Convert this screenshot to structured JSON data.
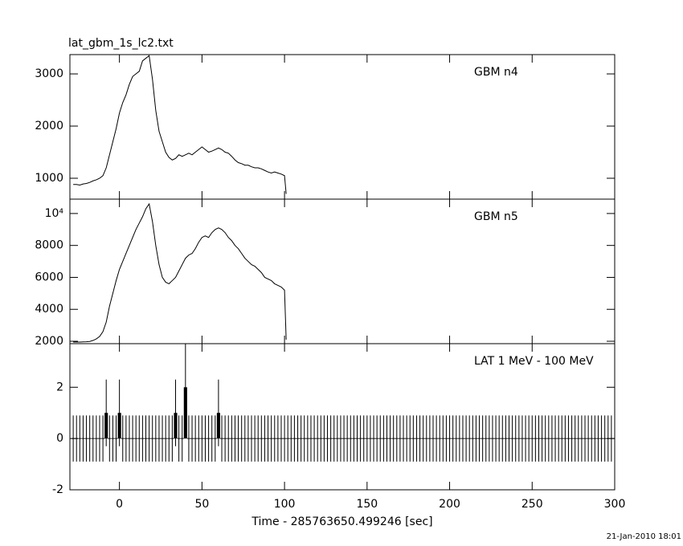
{
  "timestamp": "21-Jan-2010 18:01",
  "chart_data": [
    {
      "type": "line",
      "title": "lat_gbm_1s_lc2.txt",
      "label": "GBM n4",
      "color": "#000000",
      "xlim": [
        -30,
        300
      ],
      "ylim": [
        600,
        3370
      ],
      "yticks": [
        1000,
        2000,
        3000
      ],
      "x": [
        -28,
        -26,
        -24,
        -22,
        -20,
        -18,
        -16,
        -14,
        -12,
        -10,
        -8,
        -6,
        -4,
        -2,
        0,
        2,
        4,
        6,
        8,
        10,
        12,
        14,
        16,
        18,
        20,
        22,
        24,
        26,
        28,
        30,
        32,
        34,
        36,
        38,
        40,
        42,
        44,
        46,
        48,
        50,
        52,
        54,
        56,
        58,
        60,
        62,
        64,
        66,
        68,
        70,
        72,
        74,
        76,
        78,
        80,
        82,
        84,
        86,
        88,
        90,
        92,
        94,
        96,
        98,
        100,
        101
      ],
      "values": [
        880,
        880,
        870,
        890,
        900,
        920,
        950,
        970,
        1000,
        1050,
        1200,
        1450,
        1700,
        1950,
        2250,
        2450,
        2600,
        2800,
        2950,
        3000,
        3050,
        3250,
        3300,
        3350,
        2900,
        2300,
        1900,
        1700,
        1500,
        1400,
        1350,
        1380,
        1450,
        1420,
        1450,
        1480,
        1450,
        1500,
        1550,
        1600,
        1550,
        1500,
        1520,
        1550,
        1580,
        1550,
        1500,
        1480,
        1420,
        1350,
        1300,
        1280,
        1250,
        1250,
        1220,
        1200,
        1200,
        1180,
        1150,
        1120,
        1100,
        1120,
        1100,
        1080,
        1050,
        700
      ]
    },
    {
      "type": "line",
      "label": "GBM n5",
      "color": "#000000",
      "xlim": [
        -30,
        300
      ],
      "ylim": [
        1850,
        10900
      ],
      "yticks": [
        2000,
        4000,
        6000,
        8000,
        {
          "value": 10000,
          "label": "10⁴"
        }
      ],
      "x": [
        -28,
        -26,
        -24,
        -22,
        -20,
        -18,
        -16,
        -14,
        -12,
        -10,
        -8,
        -6,
        -4,
        -2,
        0,
        2,
        4,
        6,
        8,
        10,
        12,
        14,
        16,
        18,
        20,
        22,
        24,
        26,
        28,
        30,
        32,
        34,
        36,
        38,
        40,
        42,
        44,
        46,
        48,
        50,
        52,
        54,
        56,
        58,
        60,
        62,
        64,
        66,
        68,
        70,
        72,
        74,
        76,
        78,
        80,
        82,
        84,
        86,
        88,
        90,
        92,
        94,
        96,
        98,
        100,
        101
      ],
      "values": [
        1950,
        1950,
        1950,
        1960,
        1970,
        1990,
        2050,
        2150,
        2300,
        2600,
        3200,
        4200,
        5000,
        5800,
        6500,
        7000,
        7500,
        8000,
        8500,
        9000,
        9400,
        9800,
        10300,
        10600,
        9500,
        8000,
        6800,
        6000,
        5700,
        5600,
        5800,
        6000,
        6400,
        6800,
        7200,
        7400,
        7500,
        7800,
        8200,
        8500,
        8600,
        8500,
        8800,
        9000,
        9100,
        9000,
        8800,
        8500,
        8300,
        8000,
        7800,
        7500,
        7200,
        7000,
        6800,
        6700,
        6500,
        6300,
        6000,
        5900,
        5800,
        5600,
        5500,
        5400,
        5200,
        2100
      ]
    },
    {
      "type": "errorbar",
      "label": "LAT 1 MeV - 100 MeV",
      "xlabel": "Time - 285763650.499246 [sec]",
      "color": "#000000",
      "xlim": [
        -30,
        300
      ],
      "xticks": [
        0,
        50,
        100,
        150,
        200,
        250,
        300
      ],
      "ylim": [
        -2,
        3.7
      ],
      "yticks": [
        -2,
        0,
        2
      ],
      "x": [
        -28,
        -26,
        -24,
        -22,
        -20,
        -18,
        -16,
        -14,
        -12,
        -10,
        -8,
        -6,
        -4,
        -2,
        0,
        2,
        4,
        6,
        8,
        10,
        12,
        14,
        16,
        18,
        20,
        22,
        24,
        26,
        28,
        30,
        32,
        34,
        36,
        38,
        40,
        42,
        44,
        46,
        48,
        50,
        52,
        54,
        56,
        58,
        60,
        62,
        64,
        66,
        68,
        70,
        72,
        74,
        76,
        78,
        80,
        82,
        84,
        86,
        88,
        90,
        92,
        94,
        96,
        98,
        100,
        102,
        104,
        106,
        108,
        110,
        112,
        114,
        116,
        118,
        120,
        122,
        124,
        126,
        128,
        130,
        132,
        134,
        136,
        138,
        140,
        142,
        144,
        146,
        148,
        150,
        152,
        154,
        156,
        158,
        160,
        162,
        164,
        166,
        168,
        170,
        172,
        174,
        176,
        178,
        180,
        182,
        184,
        186,
        188,
        190,
        192,
        194,
        196,
        198,
        200,
        202,
        204,
        206,
        208,
        210,
        212,
        214,
        216,
        218,
        220,
        222,
        224,
        226,
        228,
        230,
        232,
        234,
        236,
        238,
        240,
        242,
        244,
        246,
        248,
        250,
        252,
        254,
        256,
        258,
        260,
        262,
        264,
        266,
        268,
        270,
        272,
        274,
        276,
        278,
        280,
        282,
        284,
        286,
        288,
        290,
        292,
        294,
        296,
        298,
        300
      ],
      "values": [
        0,
        0,
        0,
        0,
        0,
        0,
        0,
        0,
        0,
        0,
        1,
        0,
        0,
        0,
        1,
        0,
        0,
        0,
        0,
        0,
        0,
        0,
        0,
        0,
        0,
        0,
        0,
        0,
        0,
        0,
        0,
        1,
        0,
        0,
        2,
        0,
        0,
        0,
        0,
        0,
        0,
        0,
        0,
        0,
        1,
        0,
        0,
        0,
        0,
        0,
        0,
        0,
        0,
        0,
        0,
        0,
        0,
        0,
        0,
        0,
        0,
        0,
        0,
        0,
        0,
        0,
        0,
        0,
        0,
        0,
        0,
        0,
        0,
        0,
        0,
        0,
        0,
        0,
        0,
        0,
        0,
        0,
        0,
        0,
        0,
        0,
        0,
        0,
        0,
        0,
        0,
        0,
        0,
        0,
        0,
        0,
        0,
        0,
        0,
        0,
        0,
        0,
        0,
        0,
        0,
        0,
        0,
        0,
        0,
        0,
        0,
        0,
        0,
        0,
        0,
        0,
        0,
        0,
        0,
        0,
        0,
        0,
        0,
        0,
        0,
        0,
        0,
        0,
        0,
        0,
        0,
        0,
        0,
        0,
        0,
        0,
        0,
        0,
        0,
        0,
        0,
        0,
        0,
        0,
        0,
        0,
        0,
        0,
        0,
        0,
        0,
        0,
        0,
        0,
        0,
        0,
        0,
        0,
        0,
        0,
        0,
        0,
        0,
        0,
        0
      ],
      "errors": [
        0.9,
        0.9,
        0.9,
        0.9,
        0.9,
        0.9,
        0.9,
        0.9,
        0.9,
        0.9,
        1.3,
        0.9,
        0.9,
        0.9,
        1.3,
        0.9,
        0.9,
        0.9,
        0.9,
        0.9,
        0.9,
        0.9,
        0.9,
        0.9,
        0.9,
        0.9,
        0.9,
        0.9,
        0.9,
        0.9,
        0.9,
        1.3,
        0.9,
        0.9,
        1.8,
        0.9,
        0.9,
        0.9,
        0.9,
        0.9,
        0.9,
        0.9,
        0.9,
        0.9,
        1.3,
        0.9,
        0.9,
        0.9,
        0.9,
        0.9,
        0.9,
        0.9,
        0.9,
        0.9,
        0.9,
        0.9,
        0.9,
        0.9,
        0.9,
        0.9,
        0.9,
        0.9,
        0.9,
        0.9,
        0.9,
        0.9,
        0.9,
        0.9,
        0.9,
        0.9,
        0.9,
        0.9,
        0.9,
        0.9,
        0.9,
        0.9,
        0.9,
        0.9,
        0.9,
        0.9,
        0.9,
        0.9,
        0.9,
        0.9,
        0.9,
        0.9,
        0.9,
        0.9,
        0.9,
        0.9,
        0.9,
        0.9,
        0.9,
        0.9,
        0.9,
        0.9,
        0.9,
        0.9,
        0.9,
        0.9,
        0.9,
        0.9,
        0.9,
        0.9,
        0.9,
        0.9,
        0.9,
        0.9,
        0.9,
        0.9,
        0.9,
        0.9,
        0.9,
        0.9,
        0.9,
        0.9,
        0.9,
        0.9,
        0.9,
        0.9,
        0.9,
        0.9,
        0.9,
        0.9,
        0.9,
        0.9,
        0.9,
        0.9,
        0.9,
        0.9,
        0.9,
        0.9,
        0.9,
        0.9,
        0.9,
        0.9,
        0.9,
        0.9,
        0.9,
        0.9,
        0.9,
        0.9,
        0.9,
        0.9,
        0.9,
        0.9,
        0.9,
        0.9,
        0.9,
        0.9,
        0.9,
        0.9,
        0.9,
        0.9,
        0.9,
        0.9,
        0.9,
        0.9,
        0.9,
        0.9,
        0.9,
        0.9,
        0.9,
        0.9,
        0.9
      ]
    }
  ]
}
